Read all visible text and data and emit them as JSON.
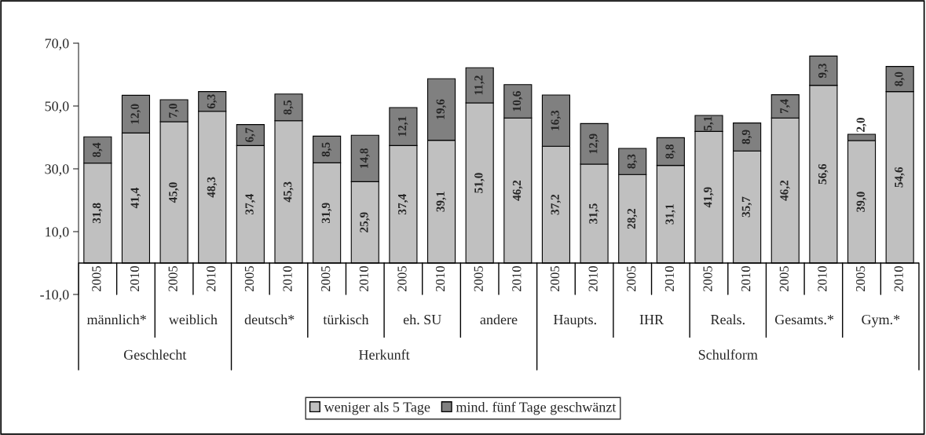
{
  "chart_data": {
    "type": "bar",
    "stacked": true,
    "categories": [
      "2005",
      "2010",
      "2005",
      "2010",
      "2005",
      "2010",
      "2005",
      "2010",
      "2005",
      "2010",
      "2005",
      "2010",
      "2005",
      "2010",
      "2005",
      "2010",
      "2005",
      "2010",
      "2005",
      "2010",
      "2005",
      "2010"
    ],
    "series": [
      {
        "name": "weniger als 5 Tage",
        "color": "#c0c0c0",
        "values": [
          31.8,
          41.4,
          45.0,
          48.3,
          37.4,
          45.3,
          31.9,
          25.9,
          37.4,
          39.1,
          51.0,
          46.2,
          37.2,
          31.5,
          28.2,
          31.1,
          41.9,
          35.7,
          46.2,
          56.6,
          39.0,
          54.6
        ],
        "value_labels": [
          "31,8",
          "41,4",
          "45,0",
          "48,3",
          "37,4",
          "45,3",
          "31,9",
          "25,9",
          "37,4",
          "39,1",
          "51,0",
          "46,2",
          "37,2",
          "31,5",
          "28,2",
          "31,1",
          "41,9",
          "35,7",
          "46,2",
          "56,6",
          "39,0",
          "54,6"
        ]
      },
      {
        "name": "mind. fünf Tage geschwänzt",
        "color": "#808080",
        "values": [
          8.4,
          12.0,
          7.0,
          6.3,
          6.7,
          8.5,
          8.5,
          14.8,
          12.1,
          19.6,
          11.2,
          10.6,
          16.3,
          12.9,
          8.3,
          8.8,
          5.1,
          8.9,
          7.4,
          9.3,
          2.0,
          8.0
        ],
        "value_labels": [
          "8,4",
          "12,0",
          "7,0",
          "6,3",
          "6,7",
          "8,5",
          "8,5",
          "14,8",
          "12,1",
          "19,6",
          "11,2",
          "10,6",
          "16,3",
          "12,9",
          "8,3",
          "8,8",
          "5,1",
          "8,9",
          "7,4",
          "9,3",
          "2,0",
          "8,0"
        ]
      }
    ],
    "ylim": [
      -10,
      70
    ],
    "yticks": [
      {
        "value": -10,
        "label": "-10,0"
      },
      {
        "value": 10,
        "label": "10,0"
      },
      {
        "value": 30,
        "label": "30,0"
      },
      {
        "value": 50,
        "label": "50,0"
      },
      {
        "value": 70,
        "label": "70,0"
      }
    ],
    "annotations": [
      "männlich*",
      "weiblich",
      "deutsch*",
      "türkisch",
      "eh. SU",
      "andere",
      "Haupts.",
      "IHR",
      "Reals.",
      "Gesamts.*",
      "Gym.*",
      "Geschlecht",
      "Herkunft",
      "Schulform"
    ],
    "grid": false,
    "legend": "bottom"
  }
}
